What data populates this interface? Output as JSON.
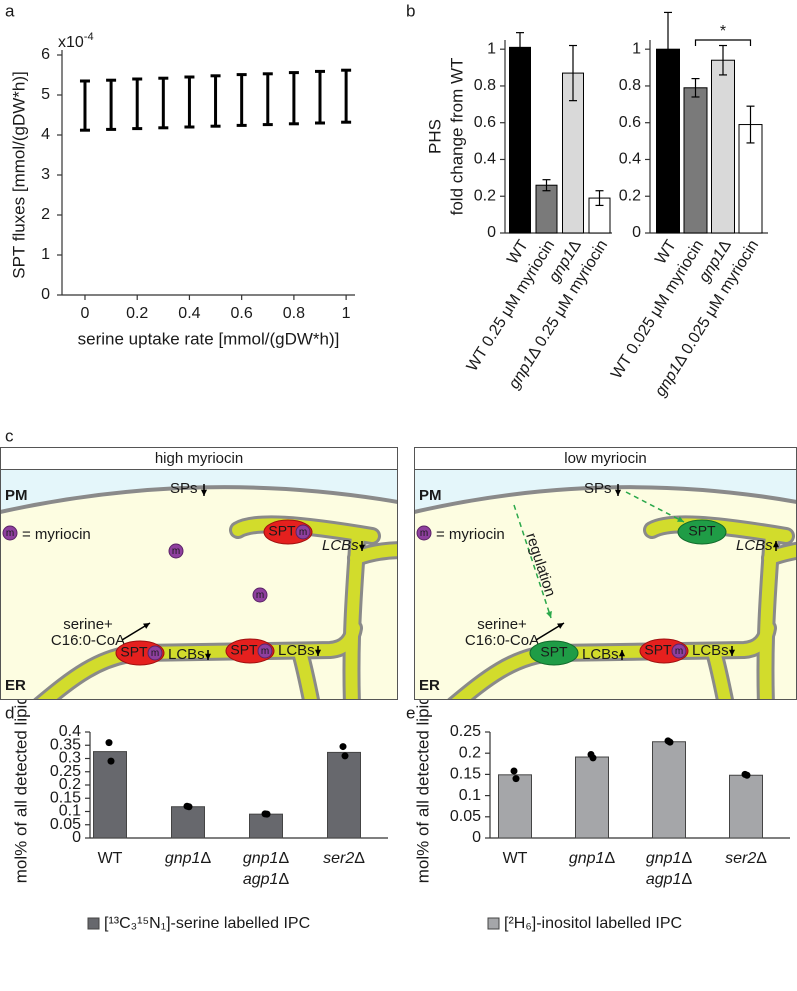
{
  "chart_data": [
    {
      "type": "errorbar",
      "label": "a",
      "xlabel": "serine uptake rate [mmol/(gDW*h)]",
      "ylabel": "SPT fluxes [mmol/(gDW*h)]",
      "y_multiplier": {
        "base": "x10",
        "exponent": "-4"
      },
      "x": [
        0,
        0.1,
        0.2,
        0.3,
        0.4,
        0.5,
        0.6,
        0.7,
        0.8,
        0.9,
        1
      ],
      "upper": [
        5.35,
        5.37,
        5.4,
        5.42,
        5.45,
        5.48,
        5.51,
        5.53,
        5.56,
        5.59,
        5.62
      ],
      "lower": [
        4.12,
        4.14,
        4.16,
        4.18,
        4.2,
        4.22,
        4.24,
        4.26,
        4.28,
        4.3,
        4.32
      ],
      "color": "#000000",
      "xlim": [
        -0.088,
        1.034
      ],
      "ylim": [
        0,
        6
      ],
      "xticks": [
        0,
        0.2,
        0.4,
        0.6,
        0.8,
        1
      ],
      "yticks": [
        0,
        1,
        2,
        3,
        4,
        5,
        6
      ]
    },
    {
      "type": "bar",
      "label": "b",
      "ylabel": [
        "PHS",
        "fold change from WT"
      ],
      "categories": [
        "WT",
        "WT 0.25 μM myriocin",
        "gnp1Δ",
        "gnp1Δ 0.25 μM myriocin"
      ],
      "values": [
        1.01,
        0.26,
        0.87,
        0.19
      ],
      "errors": [
        0.08,
        0.03,
        0.15,
        0.04
      ],
      "colors": [
        "#000000",
        "#7a7a7a",
        "#d9d9d9",
        "#ffffff"
      ],
      "ylim": [
        0,
        1.05
      ],
      "yticks": [
        0,
        0.2,
        0.4,
        0.6,
        0.8,
        1
      ]
    },
    {
      "type": "bar",
      "categories": [
        "WT",
        "WT 0.025 μM myriocin",
        "gnp1Δ",
        "gnp1Δ 0.025 μM myriocin"
      ],
      "values": [
        1.0,
        0.79,
        0.94,
        0.59
      ],
      "errors": [
        0.2,
        0.05,
        0.08,
        0.1
      ],
      "colors": [
        "#000000",
        "#7a7a7a",
        "#d9d9d9",
        "#ffffff"
      ],
      "significance": {
        "label": "*",
        "pair": [
          1,
          3
        ]
      },
      "ylim": [
        0,
        1.05
      ],
      "yticks": [
        0,
        0.2,
        0.4,
        0.6,
        0.8,
        1
      ]
    },
    {
      "type": "bar",
      "label": "d",
      "ylabel": "mol% of all detected lipids",
      "categories": [
        [
          "WT"
        ],
        [
          "gnp1Δ"
        ],
        [
          "gnp1Δ",
          "agp1Δ"
        ],
        [
          "ser2Δ"
        ]
      ],
      "series": [
        {
          "name": "[¹³C₃¹⁵N₁]-serine labelled IPC",
          "color": "#67686d",
          "values": [
            0.326,
            0.118,
            0.09,
            0.323
          ],
          "replicates": [
            [
              0.36,
              0.29
            ],
            [
              0.12,
              0.118
            ],
            [
              0.091,
              0.09
            ],
            [
              0.345,
              0.31
            ]
          ]
        }
      ],
      "ylim": [
        0,
        0.4
      ],
      "yticks": [
        0,
        0.05,
        0.1,
        0.15,
        0.2,
        0.25,
        0.3,
        0.35,
        0.4
      ]
    },
    {
      "type": "bar",
      "label": "e",
      "ylabel": "mol% of all detected lipids",
      "categories": [
        [
          "WT"
        ],
        [
          "gnp1Δ"
        ],
        [
          "gnp1Δ",
          "agp1Δ"
        ],
        [
          "ser2Δ"
        ]
      ],
      "series": [
        {
          "name": "[²H₆]-inositol labelled IPC",
          "color": "#a5a6a9",
          "values": [
            0.149,
            0.191,
            0.227,
            0.148
          ],
          "replicates": [
            [
              0.158,
              0.14
            ],
            [
              0.197,
              0.189
            ],
            [
              0.229,
              0.226
            ],
            [
              0.15,
              0.148
            ]
          ]
        }
      ],
      "ylim": [
        0,
        0.25
      ],
      "yticks": [
        0,
        0.05,
        0.1,
        0.15,
        0.2,
        0.25
      ]
    }
  ],
  "diagram": {
    "label": "c",
    "panels": [
      {
        "title": "high myriocin",
        "pm": "PM",
        "er": "ER",
        "sps": "SPs",
        "legend_mark": "m",
        "legend_text": "= myriocin",
        "free_myriocin": [
          "m",
          "m"
        ],
        "substrate": [
          "serine+",
          "C16:0-CoA"
        ],
        "spt": [
          {
            "text": "SPT",
            "myriocin": "m"
          },
          {
            "text": "SPT",
            "myriocin": "m"
          },
          {
            "text": "SPT",
            "myriocin": "m"
          }
        ],
        "lcbs": [
          "LCBs",
          "LCBs",
          "LCBs"
        ]
      },
      {
        "title": "low myriocin",
        "pm": "PM",
        "er": "ER",
        "sps": "SPs",
        "legend_mark": "m",
        "legend_text": "= myriocin",
        "regulation": "regulation",
        "substrate": [
          "serine+",
          "C16:0-CoA"
        ],
        "spt": [
          {
            "text": "SPT"
          },
          {
            "text": "SPT"
          },
          {
            "text": "SPT",
            "myriocin": "m"
          }
        ],
        "lcbs": [
          "LCBs",
          "LCBs",
          "LCBs"
        ]
      }
    ]
  }
}
